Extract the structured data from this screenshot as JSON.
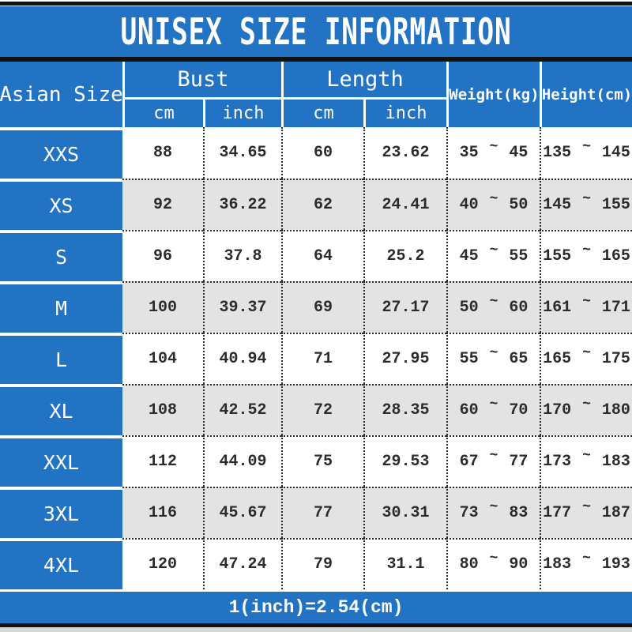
{
  "title": "UNISEX SIZE INFORMATION",
  "chart_data": {
    "type": "table",
    "title": "UNISEX SIZE INFORMATION",
    "header": {
      "size_column": "Asian Size",
      "groups": [
        {
          "label": "Bust",
          "subcolumns": [
            "cm",
            "inch"
          ]
        },
        {
          "label": "Length",
          "subcolumns": [
            "cm",
            "inch"
          ]
        }
      ],
      "weight": "Weight(kg)",
      "height": "Height(cm)"
    },
    "range_separator": "~",
    "rows": [
      {
        "size": "XXS",
        "bust_cm": "88",
        "bust_inch": "34.65",
        "length_cm": "60",
        "length_inch": "23.62",
        "weight_min": "35",
        "weight_max": "45",
        "height_min": "135",
        "height_max": "145"
      },
      {
        "size": "XS",
        "bust_cm": "92",
        "bust_inch": "36.22",
        "length_cm": "62",
        "length_inch": "24.41",
        "weight_min": "40",
        "weight_max": "50",
        "height_min": "145",
        "height_max": "155"
      },
      {
        "size": "S",
        "bust_cm": "96",
        "bust_inch": "37.8",
        "length_cm": "64",
        "length_inch": "25.2",
        "weight_min": "45",
        "weight_max": "55",
        "height_min": "155",
        "height_max": "165"
      },
      {
        "size": "M",
        "bust_cm": "100",
        "bust_inch": "39.37",
        "length_cm": "69",
        "length_inch": "27.17",
        "weight_min": "50",
        "weight_max": "60",
        "height_min": "161",
        "height_max": "171"
      },
      {
        "size": "L",
        "bust_cm": "104",
        "bust_inch": "40.94",
        "length_cm": "71",
        "length_inch": "27.95",
        "weight_min": "55",
        "weight_max": "65",
        "height_min": "165",
        "height_max": "175"
      },
      {
        "size": "XL",
        "bust_cm": "108",
        "bust_inch": "42.52",
        "length_cm": "72",
        "length_inch": "28.35",
        "weight_min": "60",
        "weight_max": "70",
        "height_min": "170",
        "height_max": "180"
      },
      {
        "size": "XXL",
        "bust_cm": "112",
        "bust_inch": "44.09",
        "length_cm": "75",
        "length_inch": "29.53",
        "weight_min": "67",
        "weight_max": "77",
        "height_min": "173",
        "height_max": "183"
      },
      {
        "size": "3XL",
        "bust_cm": "116",
        "bust_inch": "45.67",
        "length_cm": "77",
        "length_inch": "30.31",
        "weight_min": "73",
        "weight_max": "83",
        "height_min": "177",
        "height_max": "187"
      },
      {
        "size": "4XL",
        "bust_cm": "120",
        "bust_inch": "47.24",
        "length_cm": "79",
        "length_inch": "31.1",
        "weight_min": "80",
        "weight_max": "90",
        "height_min": "183",
        "height_max": "193"
      }
    ],
    "footnote": "1(inch)=2.54(cm)"
  },
  "colors": {
    "blue": "#2373c4",
    "alt_row": "#e3e3e3",
    "number_text": "#2b2b2b",
    "header_text": "#ffffff",
    "divider_black": "#121212",
    "bottom_strip": "#d7d7d7"
  }
}
